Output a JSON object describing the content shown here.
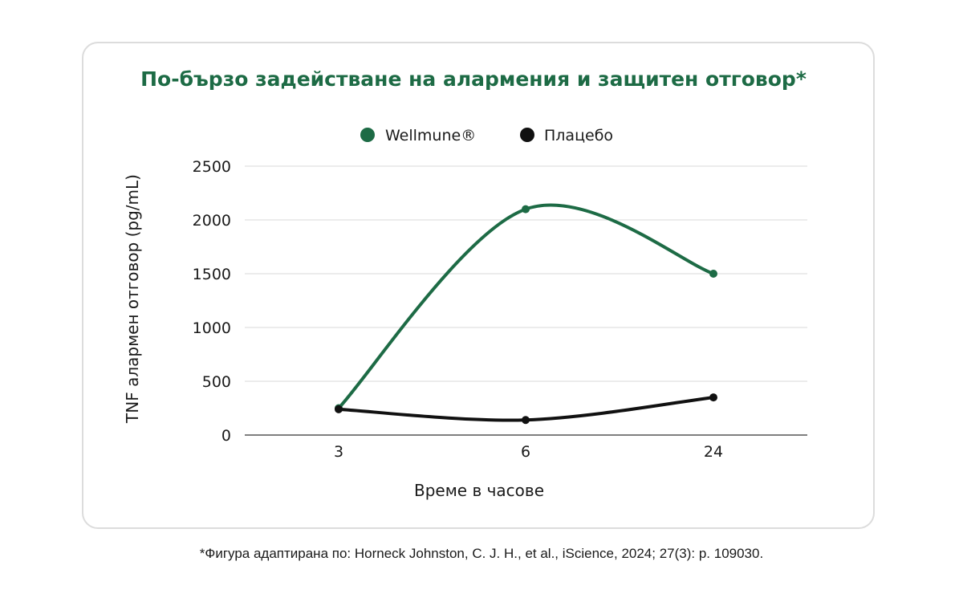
{
  "colors": {
    "accent": "#1d6b45",
    "placebo": "#111111",
    "grid": "#d9d9d9",
    "axis": "#555555",
    "text": "#1a1a1a"
  },
  "chart_data": {
    "type": "line",
    "title": "По-бързо задействане на алармения и защитен отговор*",
    "xlabel": "Време в часове",
    "ylabel": "TNF алармен отговор (pg/mL)",
    "categories": [
      "3",
      "6",
      "24"
    ],
    "ylim": [
      0,
      2500
    ],
    "yticks": [
      0,
      500,
      1000,
      1500,
      2000,
      2500
    ],
    "grid": true,
    "legend_position": "top-center",
    "smooth": true,
    "series": [
      {
        "name": "Wellmune®",
        "values": [
          250,
          2100,
          1500
        ],
        "color": "#1d6b45"
      },
      {
        "name": "Плацебо",
        "values": [
          240,
          140,
          350
        ],
        "color": "#111111"
      }
    ]
  },
  "footnote": "*Фигура адаптирана по: Horneck Johnston, C. J. H., et al., iScience, 2024; 27(3): p. 109030."
}
